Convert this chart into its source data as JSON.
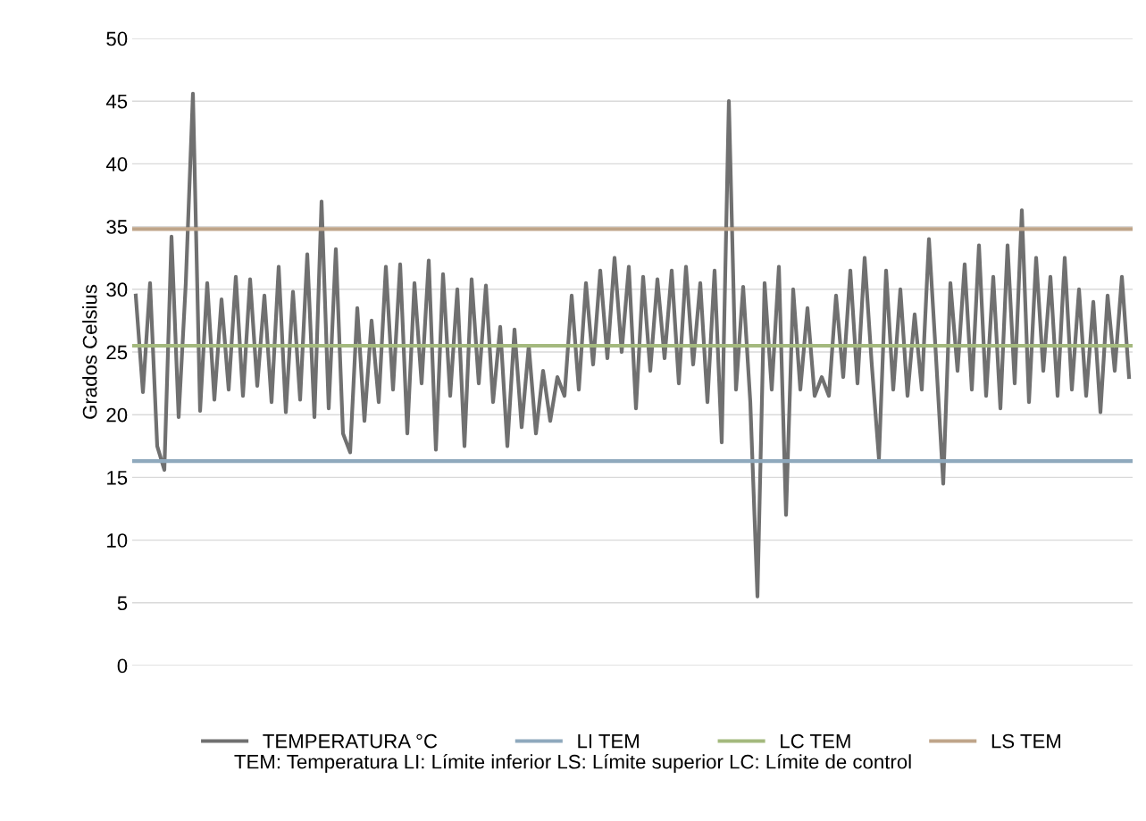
{
  "chart_data": {
    "type": "line",
    "ylabel": "Grados Celsius",
    "categories": [
      null,
      null,
      null,
      null,
      null,
      null,
      null,
      null,
      null,
      null,
      null,
      null,
      null,
      null,
      null,
      null,
      null,
      null,
      null,
      null,
      null,
      null,
      null,
      null,
      null,
      null,
      null,
      null,
      null,
      null,
      null,
      null,
      null,
      null,
      null,
      null,
      null,
      null,
      null,
      null,
      null,
      null,
      null,
      null,
      null,
      null,
      null,
      null,
      null,
      null,
      null,
      null,
      null,
      null,
      null,
      null,
      null,
      null,
      null,
      null,
      null,
      null,
      null,
      null,
      null,
      null,
      null,
      null,
      null,
      null,
      null,
      null,
      null,
      null,
      null,
      null,
      null,
      null,
      null,
      null,
      null,
      null,
      null,
      null,
      null,
      null,
      null,
      null,
      null,
      null,
      null,
      null,
      null,
      null,
      null,
      null,
      null,
      null,
      null,
      null,
      null,
      null,
      null,
      null,
      null,
      null,
      null,
      null,
      null,
      null,
      null,
      null,
      null,
      null,
      null,
      null,
      null,
      null,
      null,
      null,
      null,
      null,
      null,
      null,
      null,
      null,
      null,
      null,
      null,
      null,
      null,
      null,
      null,
      null,
      null,
      null,
      null,
      null,
      null,
      null
    ],
    "series": [
      {
        "name": "TEMPERATURA °C",
        "color": "#707070",
        "values": [
          29.5,
          21.8,
          30.5,
          17.5,
          15.6,
          34.2,
          19.8,
          30.5,
          45.6,
          20.3,
          30.5,
          21.2,
          29.2,
          22.0,
          31.0,
          21.5,
          30.8,
          22.3,
          29.5,
          21.0,
          31.8,
          20.2,
          29.8,
          21.2,
          32.8,
          19.8,
          37.0,
          20.5,
          33.2,
          18.5,
          17.0,
          28.5,
          19.5,
          27.5,
          21.0,
          31.8,
          22.0,
          32.0,
          18.5,
          30.5,
          22.5,
          32.3,
          17.2,
          31.2,
          21.5,
          30.0,
          17.5,
          30.8,
          22.5,
          30.3,
          21.0,
          27.0,
          17.5,
          26.8,
          19.0,
          25.5,
          18.5,
          23.5,
          19.5,
          23.0,
          21.5,
          29.5,
          22.0,
          30.5,
          24.0,
          31.5,
          24.5,
          32.5,
          25.0,
          31.8,
          20.5,
          31.0,
          23.5,
          30.8,
          24.5,
          31.5,
          22.5,
          31.8,
          24.0,
          30.5,
          21.0,
          31.5,
          17.8,
          45.0,
          22.0,
          30.2,
          21.0,
          5.5,
          30.5,
          22.0,
          31.8,
          12.0,
          30.0,
          22.0,
          28.5,
          21.5,
          23.0,
          21.5,
          29.5,
          23.0,
          31.5,
          22.5,
          32.5,
          24.0,
          16.5,
          31.5,
          22.0,
          30.0,
          21.5,
          28.0,
          22.0,
          34.0,
          24.5,
          14.5,
          30.5,
          23.5,
          32.0,
          22.0,
          33.5,
          21.5,
          31.0,
          20.5,
          33.5,
          22.5,
          36.3,
          21.0,
          32.5,
          23.5,
          31.0,
          21.5,
          32.5,
          22.0,
          30.0,
          21.5,
          29.0,
          20.2,
          29.5,
          23.5,
          31.0,
          23.0
        ]
      }
    ],
    "ref_lines": [
      {
        "axis": "y",
        "value": 16.3,
        "label": "LI TEM",
        "color": "#8fa9bd"
      },
      {
        "axis": "y",
        "value": 25.5,
        "label": "LC TEM",
        "color": "#a4b97e"
      },
      {
        "axis": "y",
        "value": 34.8,
        "label": "LS TEM",
        "color": "#bfa58a"
      }
    ],
    "annotations": [
      "TEM: Temperatura LI: Límite inferior LS: Límite superior LC: Límite de control"
    ],
    "ylim": [
      0,
      50
    ],
    "yticks": [
      0,
      5,
      10,
      15,
      20,
      25,
      30,
      35,
      40,
      45,
      50
    ],
    "grid": "y",
    "legend": "bottom",
    "tick_labels": "y",
    "marker": "none",
    "line_style": "solid"
  }
}
